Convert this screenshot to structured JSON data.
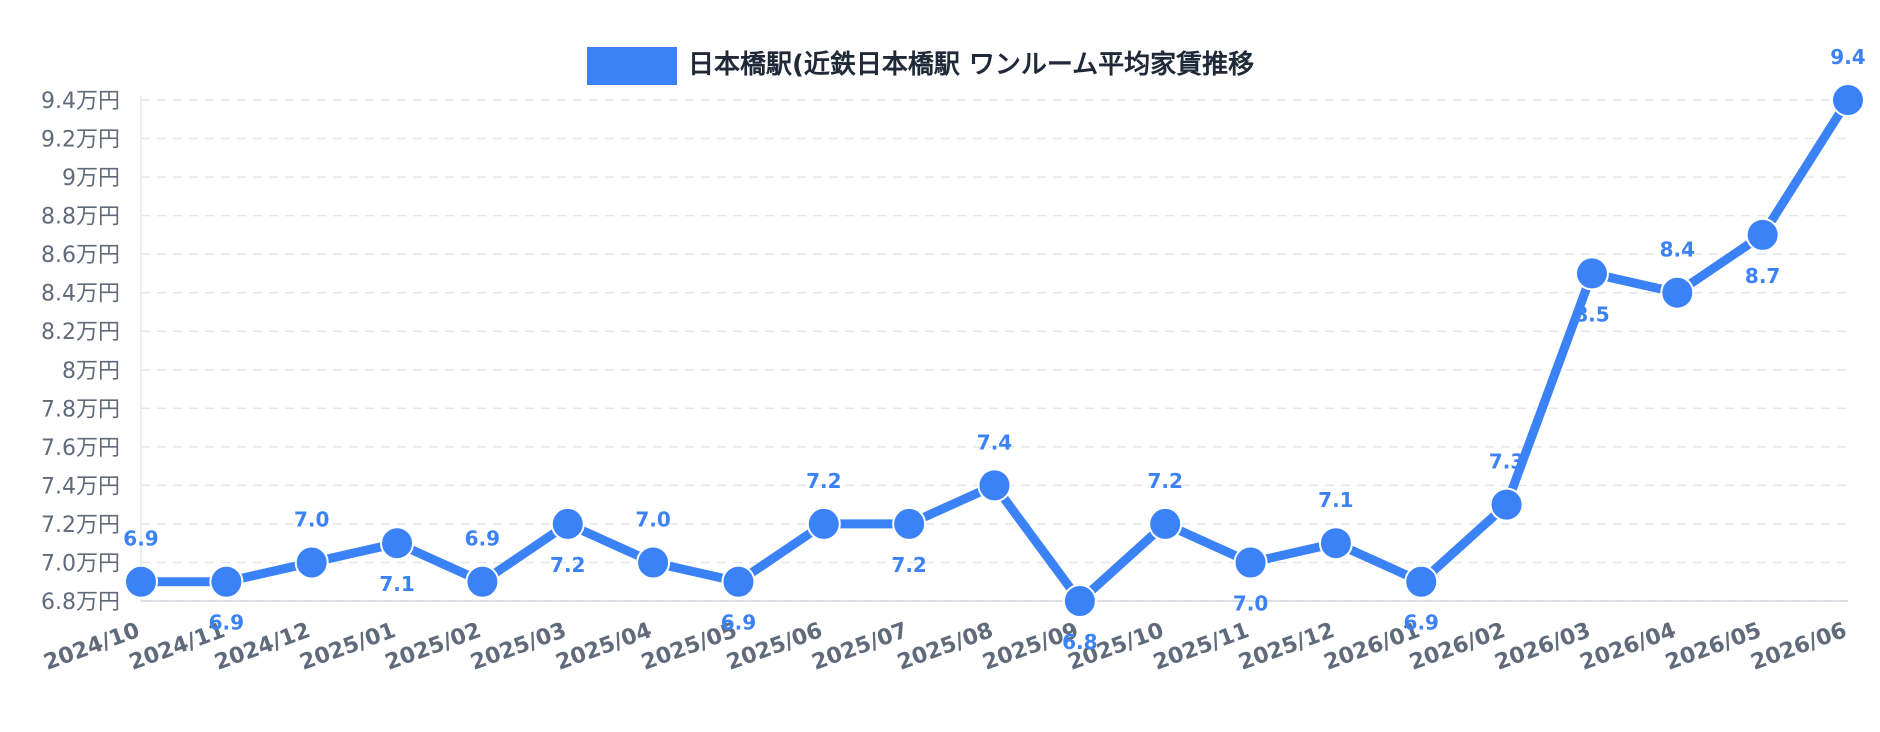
{
  "chart_data": {
    "type": "line",
    "x": [
      "2024/10",
      "2024/11",
      "2024/12",
      "2025/01",
      "2025/02",
      "2025/03",
      "2025/04",
      "2025/05",
      "2025/06",
      "2025/07",
      "2025/08",
      "2025/09",
      "2025/10",
      "2025/11",
      "2025/12",
      "2026/01",
      "2026/02",
      "2026/03",
      "2026/04",
      "2026/05",
      "2026/06"
    ],
    "series": [
      {
        "name": "日本橋駅(近鉄日本橋駅 ワンルーム平均家賃推移",
        "values": [
          6.9,
          6.9,
          7.0,
          7.1,
          6.9,
          7.2,
          7.0,
          6.9,
          7.2,
          7.2,
          7.4,
          6.8,
          7.2,
          7.0,
          7.1,
          6.9,
          7.3,
          8.5,
          8.4,
          8.7,
          9.4
        ],
        "data_labels": [
          "6.9",
          "6.9",
          "7.0",
          "7.1",
          "6.9",
          "7.2",
          "7.0",
          "6.9",
          "7.2",
          "7.2",
          "7.4",
          "6.8",
          "7.2",
          "7.0",
          "7.1",
          "6.9",
          "7.3",
          "8.5",
          "8.4",
          "8.7",
          "9.4"
        ],
        "color": "#3b82f6"
      }
    ],
    "y_ticks": [
      6.8,
      7.0,
      7.2,
      7.4,
      7.6,
      7.8,
      8.0,
      8.2,
      8.4,
      8.6,
      8.8,
      9.0,
      9.2,
      9.4
    ],
    "y_tick_labels": [
      "6.8万円",
      "7.0万円",
      "7.2万円",
      "7.4万円",
      "7.6万円",
      "7.8万円",
      "8万円",
      "8.2万円",
      "8.4万円",
      "8.6万円",
      "8.8万円",
      "9万円",
      "9.2万円",
      "9.4万円"
    ],
    "ylim": [
      6.8,
      9.4
    ],
    "grid": true,
    "legend_position": "top-center"
  }
}
